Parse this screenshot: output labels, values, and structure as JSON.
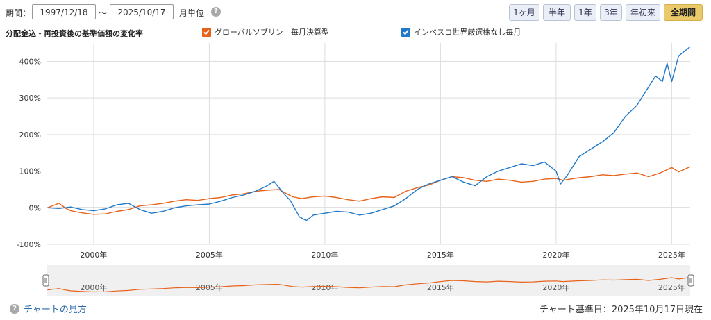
{
  "toolbar": {
    "period_label": "期間：",
    "start_date": "1997/12/18",
    "separator": "～",
    "end_date": "2025/10/17",
    "unit_label": "月単位",
    "help_glyph": "?",
    "ranges": [
      "1ヶ月",
      "半年",
      "1年",
      "3年",
      "年初来",
      "全期間"
    ],
    "active_range": "全期間"
  },
  "legend": {
    "title": "分配金込・再投資後の基準価額の変化率",
    "items": [
      {
        "name": "グローバルソブリン　毎月決算型",
        "color": "#e8621a"
      },
      {
        "name": "インベスコ世界厳選株なし毎月",
        "color": "#1f78c8"
      }
    ]
  },
  "footer": {
    "help_text": "チャートの見方",
    "as_of": "チャート基準日：2025年10月17日現在"
  },
  "colors": {
    "orange": "#e8621a",
    "blue": "#1f78c8",
    "grid": "#dddddd",
    "accent": "#e9c96a"
  },
  "chart_data": {
    "type": "line",
    "xlabel": "",
    "ylabel": "",
    "x_range": [
      1997.96,
      2025.8
    ],
    "ylim": [
      -100,
      450
    ],
    "y_ticks": [
      -100,
      0,
      100,
      200,
      300,
      400
    ],
    "y_tick_labels": [
      "-100%",
      "0%",
      "100%",
      "200%",
      "300%",
      "400%"
    ],
    "x_ticks": [
      2000,
      2005,
      2010,
      2015,
      2020,
      2025
    ],
    "x_tick_labels": [
      "2000年",
      "2005年",
      "2010年",
      "2015年",
      "2020年",
      "2025年"
    ],
    "grid": true,
    "series": [
      {
        "name": "グローバルソブリン　毎月決算型",
        "x": [
          1998.0,
          1998.5,
          1998.8,
          1999.0,
          1999.3,
          1999.6,
          2000.0,
          2000.5,
          2001.0,
          2001.5,
          2002.0,
          2002.5,
          2003.0,
          2003.5,
          2004.0,
          2004.5,
          2005.0,
          2005.5,
          2006.0,
          2006.5,
          2007.0,
          2007.5,
          2008.0,
          2008.3,
          2008.6,
          2009.0,
          2009.5,
          2010.0,
          2010.5,
          2011.0,
          2011.5,
          2012.0,
          2012.5,
          2013.0,
          2013.5,
          2014.0,
          2014.5,
          2015.0,
          2015.5,
          2016.0,
          2016.5,
          2017.0,
          2017.5,
          2018.0,
          2018.5,
          2019.0,
          2019.5,
          2020.0,
          2020.3,
          2020.6,
          2021.0,
          2021.5,
          2022.0,
          2022.5,
          2023.0,
          2023.5,
          2024.0,
          2024.5,
          2025.0,
          2025.3,
          2025.8
        ],
        "y": [
          0,
          12,
          -2,
          -8,
          -12,
          -15,
          -18,
          -17,
          -10,
          -5,
          5,
          8,
          12,
          18,
          22,
          20,
          25,
          28,
          35,
          38,
          45,
          48,
          50,
          40,
          30,
          25,
          30,
          32,
          28,
          22,
          18,
          25,
          30,
          28,
          45,
          55,
          62,
          75,
          85,
          82,
          75,
          72,
          78,
          75,
          70,
          72,
          78,
          80,
          75,
          78,
          82,
          85,
          90,
          88,
          92,
          95,
          85,
          95,
          110,
          98,
          112
        ]
      },
      {
        "name": "インベスコ世界厳選株なし毎月",
        "x": [
          1998.0,
          1998.5,
          1999.0,
          1999.5,
          2000.0,
          2000.5,
          2001.0,
          2001.5,
          2002.0,
          2002.5,
          2003.0,
          2003.5,
          2004.0,
          2004.5,
          2005.0,
          2005.5,
          2006.0,
          2006.5,
          2007.0,
          2007.5,
          2007.8,
          2008.2,
          2008.5,
          2008.9,
          2009.2,
          2009.5,
          2010.0,
          2010.5,
          2011.0,
          2011.5,
          2012.0,
          2012.5,
          2013.0,
          2013.5,
          2014.0,
          2014.5,
          2015.0,
          2015.5,
          2016.0,
          2016.5,
          2017.0,
          2017.5,
          2018.0,
          2018.5,
          2019.0,
          2019.5,
          2020.0,
          2020.2,
          2020.5,
          2021.0,
          2021.5,
          2022.0,
          2022.5,
          2023.0,
          2023.5,
          2024.0,
          2024.3,
          2024.6,
          2024.8,
          2025.0,
          2025.3,
          2025.8
        ],
        "y": [
          0,
          -2,
          2,
          -5,
          -8,
          -3,
          8,
          12,
          -5,
          -15,
          -10,
          0,
          5,
          8,
          10,
          18,
          28,
          35,
          45,
          60,
          72,
          40,
          20,
          -25,
          -35,
          -20,
          -15,
          -10,
          -12,
          -20,
          -15,
          -5,
          5,
          25,
          50,
          65,
          75,
          85,
          70,
          60,
          85,
          100,
          110,
          120,
          115,
          125,
          100,
          65,
          90,
          140,
          160,
          180,
          205,
          250,
          280,
          330,
          360,
          345,
          395,
          345,
          415,
          440
        ]
      }
    ]
  }
}
